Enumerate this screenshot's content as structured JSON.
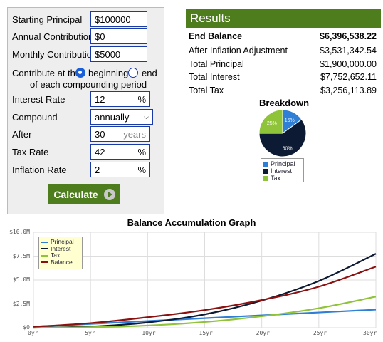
{
  "form": {
    "starting_principal_label": "Starting Principal",
    "starting_principal_value": "$100000",
    "annual_contribution_label": "Annual Contribution",
    "annual_contribution_value": "$0",
    "monthly_contribution_label": "Monthly Contribution",
    "monthly_contribution_value": "$5000",
    "contribute_label": "Contribute at the",
    "option_beginning": "beginning",
    "option_end": "end",
    "contribute_suffix": "of each compounding period",
    "interest_rate_label": "Interest Rate",
    "interest_rate_value": "12",
    "percent_unit": "%",
    "compound_label": "Compound",
    "compound_value": "annually",
    "after_label": "After",
    "after_value": "30",
    "after_unit": "years",
    "tax_rate_label": "Tax Rate",
    "tax_rate_value": "42",
    "inflation_rate_label": "Inflation Rate",
    "inflation_rate_value": "2",
    "calculate_label": "Calculate"
  },
  "results": {
    "title": "Results",
    "rows": [
      {
        "label": "End Balance",
        "value": "$6,396,538.22"
      },
      {
        "label": "After Inflation Adjustment",
        "value": "$3,531,342.54"
      },
      {
        "label": "Total Principal",
        "value": "$1,900,000.00"
      },
      {
        "label": "Total Interest",
        "value": "$7,752,652.11"
      },
      {
        "label": "Total Tax",
        "value": "$3,256,113.89"
      }
    ],
    "breakdown_title": "Breakdown",
    "pie": {
      "slices": [
        {
          "name": "Principal",
          "percent": 15,
          "label": "15%",
          "color": "#2f7fd6"
        },
        {
          "name": "Interest",
          "percent": 60,
          "label": "60%",
          "color": "#0d1a33"
        },
        {
          "name": "Tax",
          "percent": 25,
          "label": "25%",
          "color": "#8fc33a"
        }
      ]
    }
  },
  "chart_data": {
    "type": "line",
    "title": "Balance Accumulation Graph",
    "x": [
      0,
      5,
      10,
      15,
      20,
      25,
      30
    ],
    "x_tick_labels": [
      "0yr",
      "5yr",
      "10yr",
      "15yr",
      "20yr",
      "25yr",
      "30yr"
    ],
    "y_tick_labels": [
      "$0",
      "$2.5M",
      "$5.0M",
      "$7.5M",
      "$10.0M"
    ],
    "ylim": [
      0,
      10000000
    ],
    "xlim": [
      0,
      30
    ],
    "grid": true,
    "legend_position": "top-left",
    "series": [
      {
        "name": "Principal",
        "color": "#2f7fd6",
        "values": [
          100000,
          400000,
          700000,
          1000000,
          1300000,
          1600000,
          1900000
        ]
      },
      {
        "name": "Interest",
        "color": "#0d1a33",
        "values": [
          0,
          120000,
          550000,
          1400000,
          2850000,
          4900000,
          7750000
        ]
      },
      {
        "name": "Tax",
        "color": "#8fc33a",
        "values": [
          0,
          50000,
          230000,
          600000,
          1200000,
          2050000,
          3260000
        ]
      },
      {
        "name": "Balance",
        "color": "#8b1010",
        "values": [
          100000,
          480000,
          1100000,
          1850000,
          2900000,
          4300000,
          6400000
        ]
      }
    ]
  }
}
